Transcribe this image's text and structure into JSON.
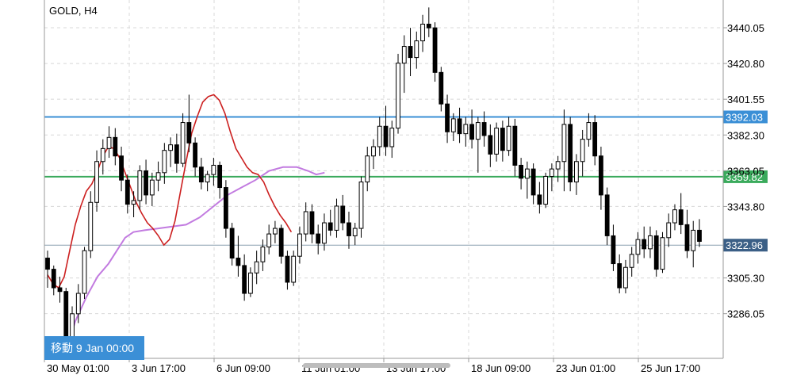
{
  "symbol_label": "GOLD, H4",
  "nav_tag": "移動 9 Jan 00:00",
  "colors": {
    "background": "#ffffff",
    "grid": "#d8d8d8",
    "axis": "#9a9a9a",
    "bull_candle": "#ffffff",
    "bear_candle": "#000000",
    "wick": "#000000",
    "ma_fast": "#cc1f1f",
    "ma_slow": "#c27be0",
    "line_blue": "#3b8fd6",
    "line_green": "#3aaa5c",
    "line_gray": "#8aa0b0",
    "tag_current": "#3b5f86",
    "nav_tag_bg": "#3b8fd6"
  },
  "chart_data": {
    "type": "candlestick",
    "timeframe": "H4",
    "y_ticks": [
      3440.05,
      3420.8,
      3401.55,
      3382.3,
      3363.05,
      3343.8,
      3305.3,
      3286.05
    ],
    "x_ticks": [
      "30 May 01:00",
      "3 Jun 17:00",
      "6 Jun 09:00",
      "11 Jun 01:00",
      "13 Jun 17:00",
      "18 Jun 09:00",
      "23 Jun 01:00",
      "25 Jun 17:00"
    ],
    "y_range": [
      3262,
      3455
    ],
    "horizontal_lines": [
      {
        "value": 3392.03,
        "label": "3392.03",
        "color": "#3b8fd6"
      },
      {
        "value": 3359.82,
        "label": "3359.82",
        "color": "#3aaa5c"
      },
      {
        "value": 3322.96,
        "label": "3322.96",
        "color": "#8aa0b0",
        "current": true
      }
    ],
    "candles": [
      [
        3316,
        3320,
        3300,
        3310
      ],
      [
        3310,
        3312,
        3296,
        3300
      ],
      [
        3300,
        3306,
        3292,
        3298
      ],
      [
        3298,
        3300,
        3262,
        3272
      ],
      [
        3272,
        3290,
        3266,
        3286
      ],
      [
        3286,
        3302,
        3281,
        3297
      ],
      [
        3297,
        3322,
        3294,
        3320
      ],
      [
        3320,
        3352,
        3316,
        3346
      ],
      [
        3346,
        3374,
        3341,
        3368
      ],
      [
        3368,
        3380,
        3361,
        3375
      ],
      [
        3375,
        3387,
        3370,
        3381
      ],
      [
        3381,
        3386,
        3366,
        3371
      ],
      [
        3371,
        3376,
        3352,
        3358
      ],
      [
        3358,
        3361,
        3340,
        3345
      ],
      [
        3345,
        3352,
        3338,
        3347
      ],
      [
        3347,
        3366,
        3342,
        3363
      ],
      [
        3363,
        3369,
        3345,
        3350
      ],
      [
        3350,
        3362,
        3344,
        3358
      ],
      [
        3358,
        3368,
        3352,
        3362
      ],
      [
        3362,
        3378,
        3356,
        3374
      ],
      [
        3374,
        3381,
        3365,
        3377
      ],
      [
        3377,
        3383,
        3362,
        3367
      ],
      [
        3367,
        3394,
        3365,
        3389
      ],
      [
        3389,
        3404,
        3373,
        3378
      ],
      [
        3378,
        3381,
        3360,
        3365
      ],
      [
        3365,
        3370,
        3353,
        3357
      ],
      [
        3357,
        3363,
        3352,
        3361
      ],
      [
        3361,
        3370,
        3355,
        3366
      ],
      [
        3366,
        3368,
        3348,
        3354
      ],
      [
        3354,
        3358,
        3327,
        3332
      ],
      [
        3332,
        3335,
        3312,
        3316
      ],
      [
        3316,
        3328,
        3306,
        3312
      ],
      [
        3312,
        3318,
        3293,
        3297
      ],
      [
        3297,
        3311,
        3295,
        3308
      ],
      [
        3308,
        3320,
        3302,
        3314
      ],
      [
        3314,
        3326,
        3309,
        3322
      ],
      [
        3322,
        3334,
        3318,
        3329
      ],
      [
        3329,
        3336,
        3324,
        3332
      ],
      [
        3332,
        3334,
        3313,
        3317
      ],
      [
        3317,
        3320,
        3299,
        3303
      ],
      [
        3303,
        3320,
        3301,
        3317
      ],
      [
        3317,
        3333,
        3313,
        3329
      ],
      [
        3329,
        3346,
        3325,
        3341
      ],
      [
        3341,
        3345,
        3324,
        3329
      ],
      [
        3329,
        3334,
        3318,
        3324
      ],
      [
        3324,
        3340,
        3320,
        3335
      ],
      [
        3335,
        3342,
        3328,
        3331
      ],
      [
        3331,
        3348,
        3327,
        3344
      ],
      [
        3344,
        3350,
        3331,
        3335
      ],
      [
        3335,
        3341,
        3321,
        3328
      ],
      [
        3328,
        3335,
        3323,
        3332
      ],
      [
        3332,
        3360,
        3327,
        3357
      ],
      [
        3357,
        3376,
        3352,
        3371
      ],
      [
        3371,
        3380,
        3364,
        3376
      ],
      [
        3376,
        3392,
        3371,
        3387
      ],
      [
        3387,
        3398,
        3371,
        3376
      ],
      [
        3376,
        3390,
        3370,
        3386
      ],
      [
        3386,
        3426,
        3383,
        3421
      ],
      [
        3421,
        3436,
        3405,
        3430
      ],
      [
        3430,
        3440,
        3414,
        3424
      ],
      [
        3424,
        3438,
        3418,
        3433
      ],
      [
        3433,
        3447,
        3427,
        3442
      ],
      [
        3442,
        3451,
        3435,
        3440
      ],
      [
        3440,
        3443,
        3411,
        3416
      ],
      [
        3416,
        3419,
        3395,
        3399
      ],
      [
        3399,
        3404,
        3378,
        3384
      ],
      [
        3384,
        3394,
        3379,
        3391
      ],
      [
        3391,
        3397,
        3378,
        3383
      ],
      [
        3383,
        3392,
        3376,
        3388
      ],
      [
        3388,
        3396,
        3375,
        3380
      ],
      [
        3380,
        3392,
        3362,
        3389
      ],
      [
        3389,
        3395,
        3376,
        3382
      ],
      [
        3382,
        3388,
        3365,
        3372
      ],
      [
        3372,
        3389,
        3368,
        3386
      ],
      [
        3386,
        3390,
        3368,
        3374
      ],
      [
        3374,
        3392,
        3371,
        3387
      ],
      [
        3387,
        3391,
        3360,
        3366
      ],
      [
        3366,
        3370,
        3353,
        3359
      ],
      [
        3359,
        3368,
        3348,
        3364
      ],
      [
        3364,
        3367,
        3345,
        3350
      ],
      [
        3350,
        3357,
        3340,
        3345
      ],
      [
        3345,
        3362,
        3343,
        3360
      ],
      [
        3360,
        3367,
        3352,
        3364
      ],
      [
        3364,
        3371,
        3357,
        3368
      ],
      [
        3368,
        3396,
        3352,
        3388
      ],
      [
        3388,
        3392,
        3352,
        3357
      ],
      [
        3357,
        3372,
        3350,
        3368
      ],
      [
        3368,
        3385,
        3360,
        3380
      ],
      [
        3380,
        3394,
        3376,
        3389
      ],
      [
        3389,
        3393,
        3366,
        3371
      ],
      [
        3371,
        3376,
        3342,
        3350
      ],
      [
        3350,
        3354,
        3323,
        3328
      ],
      [
        3328,
        3334,
        3309,
        3313
      ],
      [
        3313,
        3318,
        3297,
        3300
      ],
      [
        3300,
        3315,
        3297,
        3311
      ],
      [
        3311,
        3322,
        3306,
        3318
      ],
      [
        3318,
        3330,
        3313,
        3326
      ],
      [
        3326,
        3333,
        3316,
        3321
      ],
      [
        3321,
        3333,
        3316,
        3328
      ],
      [
        3328,
        3331,
        3306,
        3310
      ],
      [
        3310,
        3330,
        3308,
        3327
      ],
      [
        3327,
        3340,
        3322,
        3335
      ],
      [
        3335,
        3345,
        3331,
        3342
      ],
      [
        3342,
        3351,
        3329,
        3334
      ],
      [
        3334,
        3342,
        3316,
        3320
      ],
      [
        3320,
        3336,
        3311,
        3331
      ],
      [
        3331,
        3337,
        3322,
        3325
      ]
    ],
    "ma_fast": [
      [
        0,
        3307
      ],
      [
        4,
        3302
      ],
      [
        8,
        3300
      ],
      [
        12,
        3306
      ],
      [
        16,
        3320
      ],
      [
        20,
        3334
      ],
      [
        24,
        3344
      ],
      [
        28,
        3352
      ],
      [
        32,
        3356
      ],
      [
        36,
        3363
      ],
      [
        40,
        3371
      ],
      [
        44,
        3376
      ],
      [
        48,
        3375
      ],
      [
        52,
        3370
      ],
      [
        56,
        3362
      ],
      [
        60,
        3354
      ],
      [
        64,
        3346
      ],
      [
        68,
        3340
      ],
      [
        72,
        3335
      ],
      [
        76,
        3332
      ],
      [
        80,
        3328
      ],
      [
        84,
        3323
      ],
      [
        88,
        3326
      ],
      [
        92,
        3336
      ],
      [
        96,
        3352
      ],
      [
        100,
        3368
      ],
      [
        104,
        3383
      ],
      [
        108,
        3392
      ],
      [
        112,
        3400
      ],
      [
        116,
        3403
      ],
      [
        120,
        3404
      ],
      [
        124,
        3401
      ],
      [
        128,
        3394
      ],
      [
        132,
        3384
      ],
      [
        136,
        3375
      ],
      [
        140,
        3370
      ],
      [
        144,
        3365
      ],
      [
        148,
        3362
      ],
      [
        152,
        3361
      ],
      [
        156,
        3357
      ],
      [
        160,
        3350
      ],
      [
        164,
        3344
      ],
      [
        168,
        3339
      ],
      [
        172,
        3335
      ],
      [
        176,
        3330
      ]
    ],
    "ma_slow": [
      [
        12,
        3262
      ],
      [
        20,
        3282
      ],
      [
        28,
        3295
      ],
      [
        36,
        3306
      ],
      [
        44,
        3313
      ],
      [
        50,
        3320
      ],
      [
        56,
        3327
      ],
      [
        62,
        3330
      ],
      [
        70,
        3331
      ],
      [
        80,
        3332
      ],
      [
        90,
        3333
      ],
      [
        100,
        3334
      ],
      [
        110,
        3338
      ],
      [
        120,
        3344
      ],
      [
        130,
        3350
      ],
      [
        140,
        3354
      ],
      [
        150,
        3358
      ],
      [
        160,
        3363
      ],
      [
        170,
        3365
      ],
      [
        180,
        3365
      ],
      [
        188,
        3363
      ],
      [
        194,
        3361
      ],
      [
        200,
        3362
      ]
    ],
    "ma_x_scale": 4.44
  }
}
